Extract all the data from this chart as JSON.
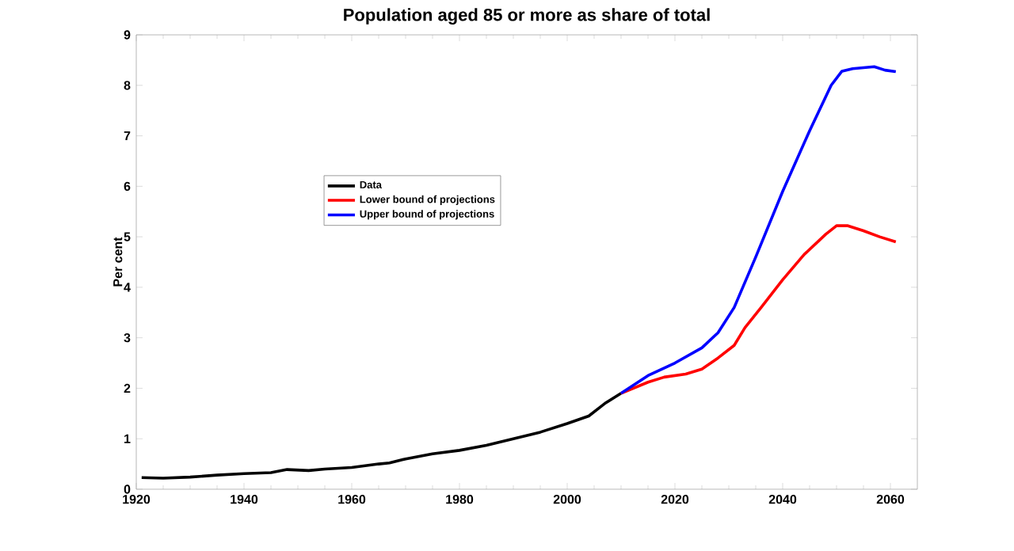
{
  "chart_data": {
    "type": "line",
    "title": "Population aged 85 or more as share of total",
    "ylabel": "Per cent",
    "xlim": [
      1920,
      2065
    ],
    "ylim": [
      0,
      9
    ],
    "xticks": [
      1920,
      1940,
      1960,
      1980,
      2000,
      2020,
      2040,
      2060
    ],
    "yticks": [
      0,
      1,
      2,
      3,
      4,
      5,
      6,
      7,
      8,
      9
    ],
    "grid": false,
    "legend": "left",
    "line_style": "solid",
    "marker": "none",
    "series": [
      {
        "name": "Data",
        "color": "#000000",
        "x": [
          1921,
          1925,
          1930,
          1935,
          1940,
          1945,
          1948,
          1952,
          1955,
          1960,
          1965,
          1967,
          1970,
          1975,
          1980,
          1985,
          1990,
          1995,
          2000,
          2004,
          2007,
          2010
        ],
        "values": [
          0.23,
          0.22,
          0.24,
          0.28,
          0.31,
          0.33,
          0.39,
          0.37,
          0.4,
          0.43,
          0.5,
          0.52,
          0.6,
          0.7,
          0.77,
          0.87,
          1.0,
          1.13,
          1.3,
          1.45,
          1.7,
          1.9
        ]
      },
      {
        "name": "Lower bound of projections",
        "color": "#ff0000",
        "x": [
          2010,
          2015,
          2018,
          2022,
          2025,
          2028,
          2031,
          2033,
          2036,
          2040,
          2044,
          2048,
          2050,
          2052,
          2055,
          2058,
          2061
        ],
        "values": [
          1.9,
          2.12,
          2.22,
          2.28,
          2.38,
          2.6,
          2.85,
          3.2,
          3.6,
          4.15,
          4.65,
          5.05,
          5.22,
          5.22,
          5.12,
          5.0,
          4.9
        ]
      },
      {
        "name": "Upper bound of projections",
        "color": "#0000ff",
        "x": [
          2010,
          2015,
          2020,
          2025,
          2028,
          2031,
          2035,
          2040,
          2045,
          2049,
          2051,
          2053,
          2057,
          2059,
          2061
        ],
        "values": [
          1.9,
          2.25,
          2.5,
          2.8,
          3.1,
          3.6,
          4.6,
          5.9,
          7.1,
          8.0,
          8.28,
          8.33,
          8.37,
          8.3,
          8.27
        ]
      }
    ]
  }
}
